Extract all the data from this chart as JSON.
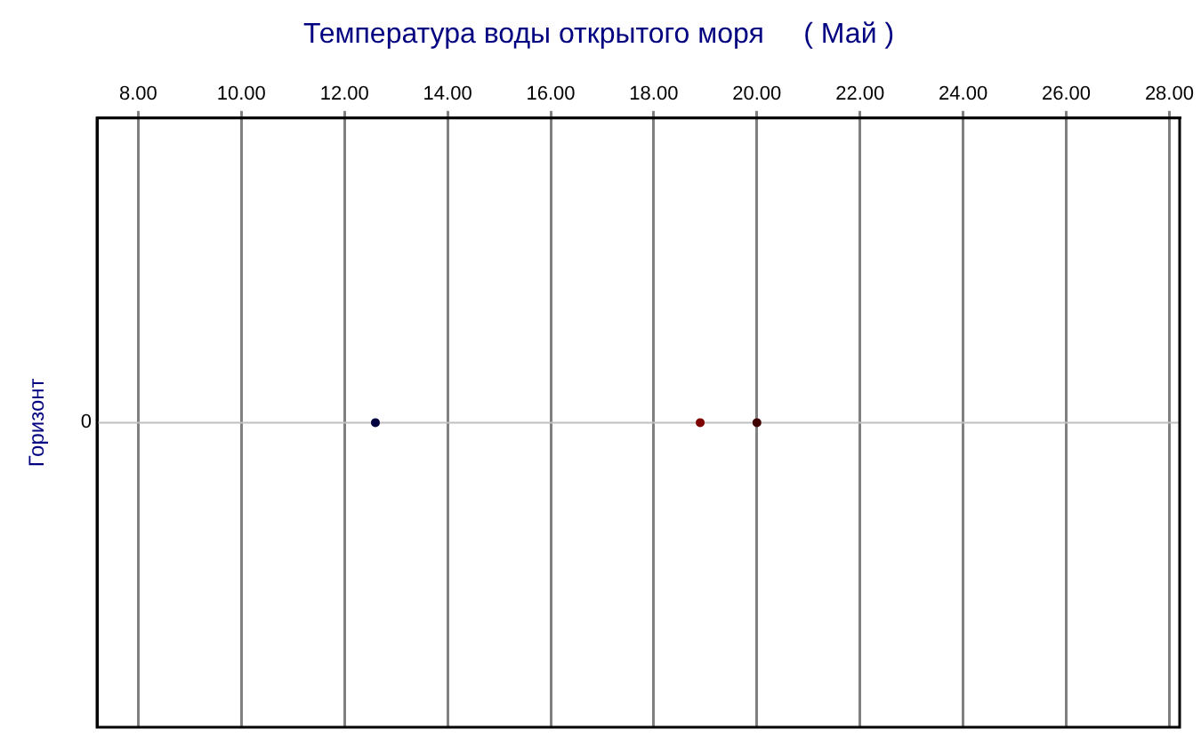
{
  "chart_data": {
    "type": "scatter",
    "orientation": "horizontal",
    "title": "Температура воды открытого моря     ( Май )",
    "ylabel": "Горизонт",
    "categories": [
      "0"
    ],
    "series": [
      {
        "color": "#000040",
        "values": [
          12.6
        ]
      },
      {
        "color": "#800000",
        "values": [
          18.9
        ]
      },
      {
        "color": "#400000",
        "values": [
          20.0
        ]
      }
    ],
    "xlim": [
      7.2,
      28.2
    ],
    "xticks": [
      {
        "value": 8,
        "label": "8.00"
      },
      {
        "value": 10,
        "label": "10.00"
      },
      {
        "value": 12,
        "label": "12.00"
      },
      {
        "value": 14,
        "label": "14.00"
      },
      {
        "value": 16,
        "label": "16.00"
      },
      {
        "value": 18,
        "label": "18.00"
      },
      {
        "value": 20,
        "label": "20.00"
      },
      {
        "value": 22,
        "label": "22.00"
      },
      {
        "value": 24,
        "label": "24.00"
      },
      {
        "value": 26,
        "label": "26.00"
      },
      {
        "value": 28,
        "label": "28.00"
      }
    ],
    "ref_lines": [
      {
        "axis": "y",
        "value": "0",
        "color": "#c0c0c0"
      }
    ],
    "grid": "x",
    "legend": false,
    "marker": "circle"
  }
}
